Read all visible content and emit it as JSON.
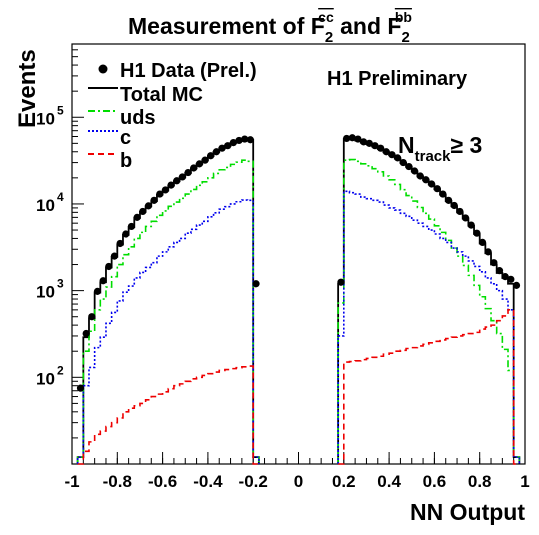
{
  "chart_data": {
    "type": "line",
    "title_parts": {
      "main": "Measurement of F",
      "sup1": "cc",
      "sub1": "2",
      "mid": " and F",
      "sup2": "bb",
      "sub2": "2"
    },
    "xlabel": "NN Output",
    "ylabel": "Events",
    "xlim": [
      -1,
      1
    ],
    "ylim": [
      10,
      700000
    ],
    "yscale": "log",
    "x_ticks": [
      -1,
      -0.8,
      -0.6,
      -0.4,
      -0.2,
      0,
      0.2,
      0.4,
      0.6,
      0.8,
      1
    ],
    "x_tick_labels": [
      "-1",
      "-0.8",
      "-0.6",
      "-0.4",
      "-0.2",
      "0",
      "0.2",
      "0.4",
      "0.6",
      "0.8",
      "1"
    ],
    "y_ticks": [
      100,
      1000,
      10000,
      100000
    ],
    "y_tick_labels": [
      "10",
      "10",
      "10",
      "10"
    ],
    "y_tick_exponents": [
      "2",
      "3",
      "4",
      "5"
    ],
    "annotations": {
      "preliminary": "H1 Preliminary",
      "ntrack_main": "N",
      "ntrack_sub": "track",
      "ntrack_cond": "≥ 3"
    },
    "legend": {
      "placement": "top-left",
      "entries": [
        {
          "label": "H1 Data (Prel.)",
          "style": "marker"
        },
        {
          "label": "Total MC",
          "style": "solid",
          "color": "#000000"
        },
        {
          "label": "uds",
          "style": "dashdot",
          "color": "#00dd00"
        },
        {
          "label": "c",
          "style": "dotted",
          "color": "#0000ee"
        },
        {
          "label": "b",
          "style": "dashed",
          "color": "#ee0000"
        }
      ]
    },
    "bin_edges_left": [
      -0.975,
      -0.95,
      -0.925,
      -0.9,
      -0.875,
      -0.85,
      -0.825,
      -0.8,
      -0.775,
      -0.75,
      -0.725,
      -0.7,
      -0.675,
      -0.65,
      -0.625,
      -0.6,
      -0.575,
      -0.55,
      -0.525,
      -0.5,
      -0.475,
      -0.45,
      -0.425,
      -0.4,
      -0.375,
      -0.35,
      -0.325,
      -0.3,
      -0.275,
      -0.25,
      -0.225,
      -0.2
    ],
    "bin_edges_right": [
      0.175,
      0.2,
      0.225,
      0.25,
      0.275,
      0.3,
      0.325,
      0.35,
      0.375,
      0.4,
      0.425,
      0.45,
      0.475,
      0.5,
      0.525,
      0.55,
      0.575,
      0.6,
      0.625,
      0.65,
      0.675,
      0.7,
      0.725,
      0.75,
      0.775,
      0.8,
      0.825,
      0.85,
      0.875,
      0.9,
      0.925,
      0.95,
      0.975
    ],
    "series": [
      {
        "name": "H1 Data (Prel.)",
        "style": "marker",
        "color": "#000000",
        "x": [
          -0.9625,
          -0.9375,
          -0.9125,
          -0.8875,
          -0.8625,
          -0.8375,
          -0.8125,
          -0.7875,
          -0.7625,
          -0.7375,
          -0.7125,
          -0.6875,
          -0.6625,
          -0.6375,
          -0.6125,
          -0.5875,
          -0.5625,
          -0.5375,
          -0.5125,
          -0.4875,
          -0.4625,
          -0.4375,
          -0.4125,
          -0.3875,
          -0.3625,
          -0.3375,
          -0.3125,
          -0.2875,
          -0.2625,
          -0.2375,
          -0.2125,
          -0.1875,
          0.1875,
          0.2125,
          0.2375,
          0.2625,
          0.2875,
          0.3125,
          0.3375,
          0.3625,
          0.3875,
          0.4125,
          0.4375,
          0.4625,
          0.4875,
          0.5125,
          0.5375,
          0.5625,
          0.5875,
          0.6125,
          0.6375,
          0.6625,
          0.6875,
          0.7125,
          0.7375,
          0.7625,
          0.7875,
          0.8125,
          0.8375,
          0.8625,
          0.8875,
          0.9125,
          0.9375,
          0.9625
        ],
        "values": [
          75,
          320,
          500,
          980,
          1300,
          1900,
          2500,
          3500,
          4500,
          5500,
          7000,
          8200,
          9500,
          11000,
          13000,
          14500,
          16500,
          18500,
          20500,
          23000,
          26000,
          29000,
          32000,
          36000,
          40000,
          44000,
          47000,
          51000,
          54000,
          56000,
          55000,
          1200,
          1250,
          57000,
          58000,
          56000,
          52000,
          50000,
          47000,
          44000,
          40000,
          37000,
          34000,
          30000,
          27000,
          24000,
          21000,
          19000,
          17000,
          15000,
          13000,
          11000,
          9600,
          8200,
          6900,
          5700,
          4600,
          3600,
          2800,
          2100,
          1700,
          1450,
          1350,
          1150
        ]
      },
      {
        "name": "Total MC",
        "style": "solid",
        "color": "#000000",
        "left": [
          12,
          290,
          480,
          950,
          1250,
          1850,
          2450,
          3400,
          4400,
          5400,
          6900,
          8100,
          9400,
          10800,
          12800,
          14300,
          16300,
          18300,
          20300,
          22800,
          25800,
          28800,
          31800,
          35800,
          39800,
          43800,
          46800,
          50800,
          53800,
          55800,
          54800,
          12
        ],
        "right": [
          1200,
          56000,
          56500,
          54000,
          51000,
          49000,
          46000,
          43000,
          39500,
          36500,
          33500,
          29800,
          26800,
          23800,
          20800,
          18800,
          16800,
          14800,
          12800,
          10800,
          9400,
          8000,
          6800,
          5600,
          4500,
          3500,
          2700,
          2000,
          1600,
          1400,
          1200,
          12
        ]
      },
      {
        "name": "uds",
        "style": "dashdot",
        "color": "#00dd00",
        "left": [
          12,
          200,
          340,
          600,
          800,
          1100,
          1450,
          2000,
          2600,
          3200,
          4000,
          4700,
          5500,
          6300,
          7400,
          8300,
          9400,
          10500,
          11600,
          13000,
          14700,
          16400,
          18000,
          20000,
          22500,
          24800,
          26400,
          28600,
          30300,
          32000,
          31000,
          12
        ],
        "right": [
          720,
          32000,
          32500,
          31000,
          29000,
          27500,
          25500,
          23500,
          21000,
          19000,
          16800,
          14600,
          12500,
          10800,
          9100,
          7800,
          6700,
          5600,
          4700,
          3800,
          3100,
          2500,
          1950,
          1500,
          1150,
          850,
          620,
          450,
          320,
          210,
          120,
          12
        ]
      },
      {
        "name": "c",
        "style": "dotted",
        "color": "#0000ee",
        "left": [
          12,
          80,
          130,
          220,
          290,
          420,
          560,
          760,
          960,
          1130,
          1400,
          1620,
          1850,
          2100,
          2500,
          2800,
          3200,
          3600,
          4000,
          4600,
          5100,
          5700,
          6300,
          7100,
          7900,
          8700,
          9300,
          10000,
          10600,
          11100,
          11000,
          12
        ],
        "right": [
          300,
          14000,
          13500,
          13000,
          12000,
          11500,
          11000,
          10500,
          9700,
          9000,
          8500,
          7800,
          7200,
          6500,
          6000,
          5500,
          5000,
          4500,
          4000,
          3600,
          3100,
          2800,
          2500,
          2200,
          1900,
          1650,
          1400,
          1200,
          1000,
          800,
          600,
          12
        ]
      },
      {
        "name": "b",
        "style": "dashed",
        "color": "#ee0000",
        "left": [
          10,
          14,
          18,
          22,
          24,
          27,
          30,
          34,
          40,
          44,
          47,
          50,
          55,
          60,
          64,
          68,
          74,
          80,
          84,
          90,
          96,
          100,
          105,
          110,
          115,
          120,
          123,
          126,
          129,
          132,
          135,
          10
        ],
        "right": [
          10,
          150,
          152,
          155,
          160,
          165,
          170,
          175,
          185,
          190,
          200,
          205,
          215,
          220,
          230,
          240,
          250,
          260,
          270,
          280,
          290,
          300,
          310,
          320,
          330,
          360,
          380,
          400,
          450,
          510,
          600,
          10
        ]
      }
    ]
  }
}
